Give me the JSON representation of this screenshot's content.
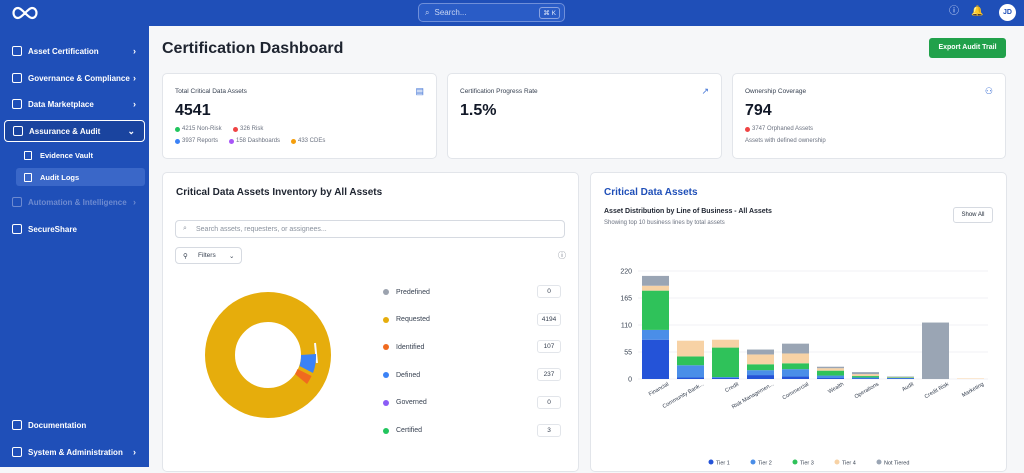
{
  "topbar": {
    "search_placeholder": "Search...",
    "search_shortcut": "⌘ K",
    "avatar": "JD",
    "icons": [
      "help-icon",
      "bell-icon"
    ]
  },
  "sidebar": {
    "items": [
      {
        "label": "Asset Certification",
        "icon": "shield-icon"
      },
      {
        "label": "Governance & Compliance",
        "icon": "shield-icon"
      },
      {
        "label": "Data Marketplace",
        "icon": "store-icon"
      },
      {
        "label": "Assurance & Audit",
        "icon": "clipboard-icon"
      },
      {
        "label": "Automation & Intelligence",
        "icon": "bot-icon"
      },
      {
        "label": "SecureShare",
        "icon": "share-icon"
      }
    ],
    "sub_items": [
      {
        "label": "Evidence Vault"
      },
      {
        "label": "Audit Logs"
      }
    ],
    "bottom_items": [
      {
        "label": "Documentation"
      },
      {
        "label": "System & Administration"
      }
    ]
  },
  "page": {
    "title": "Certification Dashboard",
    "export_label": "Export Audit Trail"
  },
  "kpis": [
    {
      "title": "Total Critical Data Assets",
      "value": "4541",
      "lines": [
        "4215 Non-Risk",
        "326 Risk",
        "3937 Reports",
        "158 Dashboards",
        "433 CDEs"
      ]
    },
    {
      "title": "Certification Progress Rate",
      "value": "1.5%"
    },
    {
      "title": "Ownership Coverage",
      "value": "794",
      "lines": [
        "3747 Orphaned Assets",
        "Assets with defined ownership"
      ]
    }
  ],
  "inventory": {
    "title": "Critical Data Assets Inventory by All Assets",
    "search_placeholder": "Search assets, requesters, or assignees...",
    "filters_label": "Filters",
    "statuses": [
      {
        "label": "Predefined",
        "count": "0",
        "color": "#9ca3af"
      },
      {
        "label": "Requested",
        "count": "4194",
        "color": "#e6ad0c"
      },
      {
        "label": "Identified",
        "count": "107",
        "color": "#f06a1f"
      },
      {
        "label": "Defined",
        "count": "237",
        "color": "#3b82f6"
      },
      {
        "label": "Governed",
        "count": "0",
        "color": "#8b5cf6"
      },
      {
        "label": "Certified",
        "count": "3",
        "color": "#22c55e"
      }
    ]
  },
  "cda": {
    "title": "Critical Data Assets",
    "subtitle": "Asset Distribution by Line of Business - All Assets",
    "note": "Showing top 10 business lines by total assets",
    "show_all": "Show All"
  },
  "colors": {
    "primary": "#1f4fb8",
    "success": "#21a14b"
  },
  "chart_data": {
    "type": "bar",
    "stacked": true,
    "categories": [
      "Financial",
      "Community Bank...",
      "Credit",
      "Risk Managemen...",
      "Commercial",
      "Wealth",
      "Operations",
      "Audit",
      "Credit Risk",
      "Marketing"
    ],
    "ylim": [
      0,
      220
    ],
    "yticks": [
      0,
      55,
      110,
      165,
      220
    ],
    "series": [
      {
        "name": "Tier 1",
        "color": "#2453d8",
        "values": [
          80,
          3,
          2,
          8,
          5,
          2,
          1,
          1,
          0,
          0
        ]
      },
      {
        "name": "Tier 2",
        "color": "#4a8ee8",
        "values": [
          20,
          25,
          2,
          10,
          15,
          5,
          2,
          1,
          0,
          0
        ]
      },
      {
        "name": "Tier 3",
        "color": "#2fc25a",
        "values": [
          80,
          18,
          60,
          12,
          12,
          10,
          3,
          1,
          0,
          0
        ]
      },
      {
        "name": "Tier 4",
        "color": "#f7d2a5",
        "values": [
          10,
          32,
          16,
          20,
          20,
          5,
          4,
          1,
          0,
          1
        ]
      },
      {
        "name": "Not Tiered",
        "color": "#9aa5b4",
        "values": [
          20,
          0,
          0,
          10,
          20,
          3,
          4,
          1,
          115,
          0
        ]
      }
    ]
  }
}
